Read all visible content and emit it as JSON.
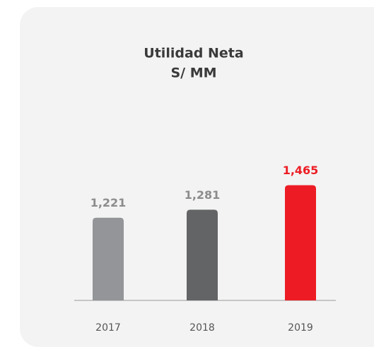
{
  "chart_data": {
    "type": "bar",
    "title": [
      "Utilidad Neta",
      "S/ MM"
    ],
    "categories": [
      "2017",
      "2018",
      "2019"
    ],
    "values": [
      1221,
      1281,
      1465
    ],
    "value_labels": [
      "1,221",
      "1,281",
      "1,465"
    ],
    "colors": [
      "#939598",
      "#636466",
      "#ed1c24"
    ],
    "label_colors": [
      "#8c8c8c",
      "#8c8c8c",
      "#ed1c24"
    ],
    "ylim": [
      600,
      1500
    ]
  }
}
